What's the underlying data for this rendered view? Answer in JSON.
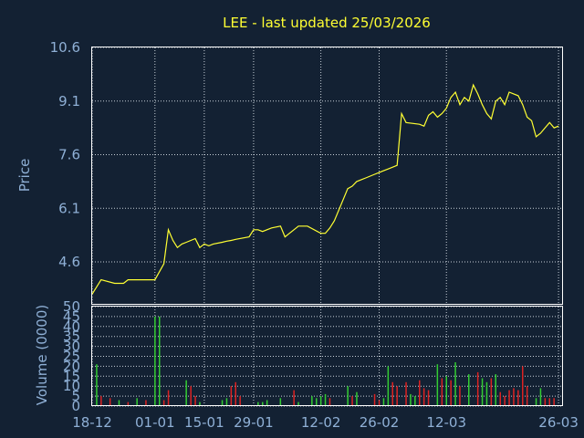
{
  "chart_data": [
    {
      "type": "line",
      "title": "LEE - last updated 25/03/2026",
      "ylabel": "Price",
      "ylim": [
        3.4,
        10.6
      ],
      "y_ticks": [
        "10.6",
        "9.1",
        "7.6",
        "6.1",
        "4.6"
      ],
      "grid": true,
      "line_color": "#ffff33",
      "x": [
        0,
        1,
        2,
        5,
        7,
        8,
        14,
        16,
        17,
        18,
        19,
        20,
        21,
        23,
        24,
        25,
        26,
        27,
        29,
        30,
        31,
        32,
        35,
        36,
        37,
        38,
        40,
        42,
        43,
        44,
        45,
        46,
        48,
        51,
        52,
        53,
        54,
        57,
        58,
        59,
        60,
        61,
        62,
        63,
        64,
        65,
        66,
        67,
        68,
        69,
        70,
        73,
        74,
        75,
        76,
        77,
        78,
        79,
        80,
        81,
        82,
        83,
        84,
        85,
        86,
        87,
        88,
        89,
        90,
        91,
        92,
        93,
        94,
        95,
        96,
        97,
        98,
        99,
        100,
        101,
        102,
        103,
        104
      ],
      "values": [
        3.7,
        3.9,
        4.1,
        4.0,
        4.0,
        4.1,
        4.1,
        4.55,
        5.5,
        5.2,
        5.0,
        5.1,
        5.15,
        5.25,
        5.0,
        5.1,
        5.05,
        5.1,
        5.15,
        5.18,
        5.2,
        5.23,
        5.3,
        5.5,
        5.5,
        5.45,
        5.55,
        5.6,
        5.3,
        5.4,
        5.5,
        5.6,
        5.6,
        5.4,
        5.4,
        5.55,
        5.75,
        6.65,
        6.72,
        6.85,
        6.9,
        6.95,
        7.0,
        7.05,
        7.1,
        7.15,
        7.2,
        7.25,
        7.3,
        8.75,
        8.5,
        8.45,
        8.4,
        8.7,
        8.8,
        8.65,
        8.75,
        8.9,
        9.2,
        9.35,
        9.0,
        9.2,
        9.1,
        9.55,
        9.3,
        9.0,
        8.75,
        8.6,
        9.1,
        9.2,
        9.0,
        9.35,
        9.3,
        9.25,
        9.0,
        8.65,
        8.55,
        8.1,
        8.2,
        8.35,
        8.5,
        8.35,
        8.4
      ],
      "x_min": 0,
      "x_max": 105
    },
    {
      "type": "bar",
      "ylabel": "Volume (0000)",
      "ylim": [
        0,
        50
      ],
      "y_ticks": [
        "50",
        "45",
        "40",
        "35",
        "30",
        "25",
        "20",
        "15",
        "10",
        "5",
        "0"
      ],
      "x_ticks": [
        {
          "x": 0,
          "label": "18-12"
        },
        {
          "x": 14,
          "label": "01-01"
        },
        {
          "x": 25,
          "label": "15-01"
        },
        {
          "x": 36,
          "label": "29-01"
        },
        {
          "x": 51,
          "label": "12-02"
        },
        {
          "x": 64,
          "label": "26-02"
        },
        {
          "x": 79,
          "label": "12-03"
        },
        {
          "x": 104,
          "label": "26-03"
        }
      ],
      "grid": true,
      "up_color": "#33cc33",
      "down_color": "#dd2222",
      "bars": [
        {
          "x": 1,
          "value": 21,
          "dir": "up"
        },
        {
          "x": 2,
          "value": 5,
          "dir": "down"
        },
        {
          "x": 4,
          "value": 4,
          "dir": "down"
        },
        {
          "x": 6,
          "value": 3,
          "dir": "up"
        },
        {
          "x": 8,
          "value": 2,
          "dir": "down"
        },
        {
          "x": 10,
          "value": 4,
          "dir": "up"
        },
        {
          "x": 12,
          "value": 3,
          "dir": "down"
        },
        {
          "x": 14,
          "value": 45,
          "dir": "up"
        },
        {
          "x": 15,
          "value": 45,
          "dir": "up"
        },
        {
          "x": 16,
          "value": 3,
          "dir": "down"
        },
        {
          "x": 17,
          "value": 8,
          "dir": "down"
        },
        {
          "x": 21,
          "value": 13,
          "dir": "up"
        },
        {
          "x": 22,
          "value": 10,
          "dir": "down"
        },
        {
          "x": 23,
          "value": 5,
          "dir": "down"
        },
        {
          "x": 24,
          "value": 2,
          "dir": "up"
        },
        {
          "x": 29,
          "value": 3,
          "dir": "up"
        },
        {
          "x": 30,
          "value": 4,
          "dir": "up"
        },
        {
          "x": 31,
          "value": 10,
          "dir": "down"
        },
        {
          "x": 32,
          "value": 12,
          "dir": "down"
        },
        {
          "x": 33,
          "value": 5,
          "dir": "down"
        },
        {
          "x": 37,
          "value": 2,
          "dir": "up"
        },
        {
          "x": 38,
          "value": 2,
          "dir": "up"
        },
        {
          "x": 39,
          "value": 3,
          "dir": "up"
        },
        {
          "x": 42,
          "value": 4,
          "dir": "up"
        },
        {
          "x": 45,
          "value": 8,
          "dir": "down"
        },
        {
          "x": 46,
          "value": 2,
          "dir": "up"
        },
        {
          "x": 49,
          "value": 5,
          "dir": "up"
        },
        {
          "x": 50,
          "value": 4,
          "dir": "up"
        },
        {
          "x": 51,
          "value": 5,
          "dir": "up"
        },
        {
          "x": 52,
          "value": 6,
          "dir": "up"
        },
        {
          "x": 53,
          "value": 4,
          "dir": "down"
        },
        {
          "x": 57,
          "value": 10,
          "dir": "up"
        },
        {
          "x": 58,
          "value": 5,
          "dir": "down"
        },
        {
          "x": 59,
          "value": 7,
          "dir": "up"
        },
        {
          "x": 63,
          "value": 6,
          "dir": "down"
        },
        {
          "x": 64,
          "value": 3,
          "dir": "down"
        },
        {
          "x": 65,
          "value": 4,
          "dir": "up"
        },
        {
          "x": 66,
          "value": 20,
          "dir": "up"
        },
        {
          "x": 67,
          "value": 12,
          "dir": "down"
        },
        {
          "x": 68,
          "value": 10,
          "dir": "down"
        },
        {
          "x": 70,
          "value": 12,
          "dir": "down"
        },
        {
          "x": 71,
          "value": 6,
          "dir": "up"
        },
        {
          "x": 72,
          "value": 5,
          "dir": "up"
        },
        {
          "x": 73,
          "value": 13,
          "dir": "down"
        },
        {
          "x": 74,
          "value": 9,
          "dir": "down"
        },
        {
          "x": 75,
          "value": 8,
          "dir": "down"
        },
        {
          "x": 77,
          "value": 21,
          "dir": "up"
        },
        {
          "x": 78,
          "value": 14,
          "dir": "down"
        },
        {
          "x": 79,
          "value": 15,
          "dir": "up"
        },
        {
          "x": 80,
          "value": 13,
          "dir": "down"
        },
        {
          "x": 81,
          "value": 22,
          "dir": "up"
        },
        {
          "x": 82,
          "value": 10,
          "dir": "down"
        },
        {
          "x": 84,
          "value": 16,
          "dir": "up"
        },
        {
          "x": 86,
          "value": 17,
          "dir": "down"
        },
        {
          "x": 87,
          "value": 14,
          "dir": "up"
        },
        {
          "x": 88,
          "value": 12,
          "dir": "up"
        },
        {
          "x": 89,
          "value": 14,
          "dir": "down"
        },
        {
          "x": 90,
          "value": 16,
          "dir": "up"
        },
        {
          "x": 91,
          "value": 7,
          "dir": "down"
        },
        {
          "x": 92,
          "value": 5,
          "dir": "down"
        },
        {
          "x": 93,
          "value": 8,
          "dir": "down"
        },
        {
          "x": 94,
          "value": 9,
          "dir": "down"
        },
        {
          "x": 95,
          "value": 8,
          "dir": "down"
        },
        {
          "x": 96,
          "value": 20,
          "dir": "down"
        },
        {
          "x": 97,
          "value": 10,
          "dir": "down"
        },
        {
          "x": 99,
          "value": 4,
          "dir": "up"
        },
        {
          "x": 100,
          "value": 9,
          "dir": "up"
        },
        {
          "x": 101,
          "value": 4,
          "dir": "down"
        },
        {
          "x": 102,
          "value": 4,
          "dir": "down"
        },
        {
          "x": 103,
          "value": 4,
          "dir": "down"
        }
      ],
      "x_min": 0,
      "x_max": 105
    }
  ]
}
